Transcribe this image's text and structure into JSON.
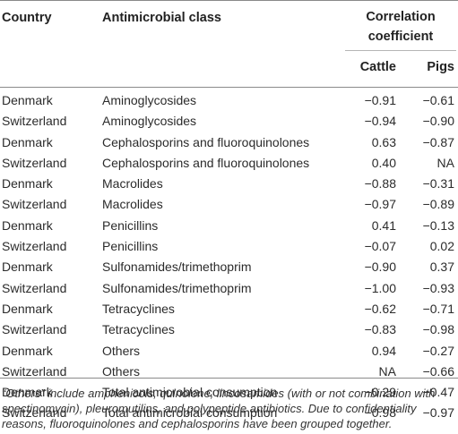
{
  "header": {
    "country": "Country",
    "antimicrobial_class": "Antimicrobial class",
    "correlation_coefficient": "Correlation coefficient",
    "cattle": "Cattle",
    "pigs": "Pigs"
  },
  "rows": [
    {
      "country": "Denmark",
      "class": "Aminoglycosides",
      "cattle": "−0.91",
      "pigs": "−0.61"
    },
    {
      "country": "Switzerland",
      "class": "Aminoglycosides",
      "cattle": "−0.94",
      "pigs": "−0.90"
    },
    {
      "country": "Denmark",
      "class": "Cephalosporins and fluoroquinolones",
      "cattle": "0.63",
      "pigs": "−0.87"
    },
    {
      "country": "Switzerland",
      "class": "Cephalosporins and fluoroquinolones",
      "cattle": "0.40",
      "pigs": "NA"
    },
    {
      "country": "Denmark",
      "class": "Macrolides",
      "cattle": "−0.88",
      "pigs": "−0.31"
    },
    {
      "country": "Switzerland",
      "class": "Macrolides",
      "cattle": "−0.97",
      "pigs": "−0.89"
    },
    {
      "country": "Denmark",
      "class": "Penicillins",
      "cattle": "0.41",
      "pigs": "−0.13"
    },
    {
      "country": "Switzerland",
      "class": "Penicillins",
      "cattle": "−0.07",
      "pigs": "0.02"
    },
    {
      "country": "Denmark",
      "class": "Sulfonamides/trimethoprim",
      "cattle": "−0.90",
      "pigs": "0.37"
    },
    {
      "country": "Switzerland",
      "class": "Sulfonamides/trimethoprim",
      "cattle": "−1.00",
      "pigs": "−0.93"
    },
    {
      "country": "Denmark",
      "class": "Tetracyclines",
      "cattle": "−0.62",
      "pigs": "−0.71"
    },
    {
      "country": "Switzerland",
      "class": "Tetracyclines",
      "cattle": "−0.83",
      "pigs": "−0.98"
    },
    {
      "country": "Denmark",
      "class": "Others",
      "cattle": "0.94",
      "pigs": "−0.27"
    },
    {
      "country": "Switzerland",
      "class": "Others",
      "cattle": "NA",
      "pigs": "−0.66"
    },
    {
      "country": "Denmark",
      "class": "Total antimicrobial consumption",
      "cattle": "−0.29",
      "pigs": "−0.47"
    },
    {
      "country": "Switzerland",
      "class": "Total antimicrobial consumption",
      "cattle": "−0.98",
      "pigs": "−0.97"
    }
  ],
  "footnote": "“Others” include amphenicols, quinolone, lincosamides (with or not combination with spectinomycin), pleuromutilins, and polypeptide antibiotics. Due to confidentiality reasons, fluoroquinolones and cephalosporins have been grouped together."
}
